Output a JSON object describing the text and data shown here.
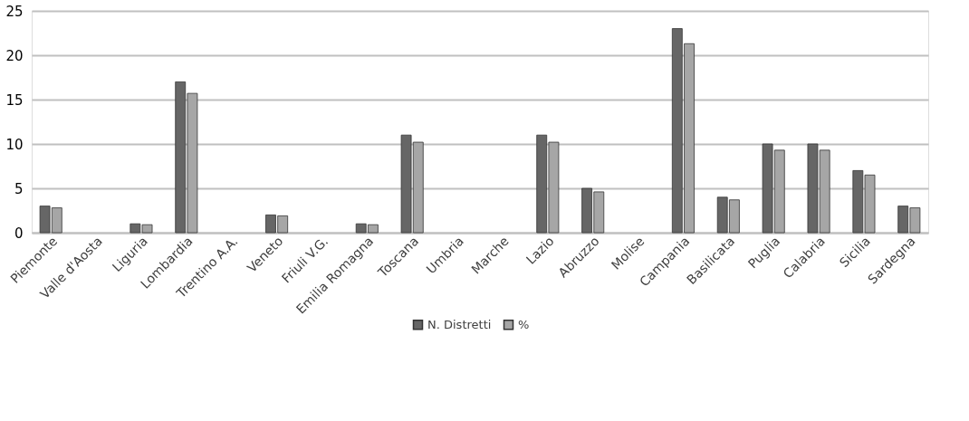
{
  "chart_data": {
    "type": "bar",
    "categories": [
      "Piemonte",
      "Valle d'Aosta",
      "Liguria",
      "Lombardia",
      "Trentino A.A.",
      "Veneto",
      "Friuli V.G.",
      "Emilia Romagna",
      "Toscana",
      "Umbria",
      "Marche",
      "Lazio",
      "Abruzzo",
      "Molise",
      "Campania",
      "Basilicata",
      "Puglia",
      "Calabria",
      "Sicilia",
      "Sardegna"
    ],
    "series": [
      {
        "name": "N. Distretti",
        "color": "#666666",
        "values": [
          3,
          0,
          1,
          17,
          0,
          2,
          0,
          1,
          11,
          0,
          0,
          11,
          5,
          0,
          23,
          4,
          10,
          10,
          7,
          3
        ]
      },
      {
        "name": "%",
        "color": "#a6a6a6",
        "values": [
          2.8,
          0,
          0.9,
          15.7,
          0,
          1.9,
          0,
          0.9,
          10.2,
          0,
          0,
          10.2,
          4.6,
          0,
          21.3,
          3.7,
          9.3,
          9.3,
          6.5,
          2.8
        ]
      }
    ],
    "ylim": [
      0,
      25
    ],
    "yticks": [
      0,
      5,
      10,
      15,
      20,
      25
    ],
    "grid": "y",
    "legend": "bottom"
  }
}
